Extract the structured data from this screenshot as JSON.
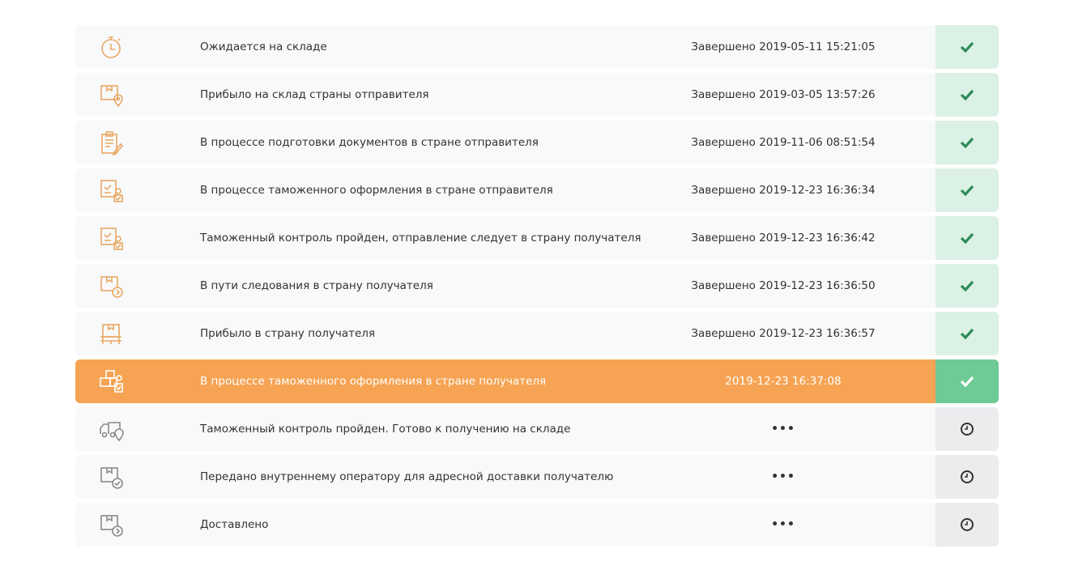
{
  "colors": {
    "icon_done": "#e9a865",
    "icon_pending": "#8a8a8a",
    "active_bg": "#f6a353",
    "done_status_bg": "#dcf1e5",
    "active_status_bg": "#6ecb95",
    "pending_status_bg": "#ebecee",
    "check": "#2e8b57"
  },
  "steps": [
    {
      "icon": "stopwatch-icon",
      "label": "Ожидается на складе",
      "date": "Завершено 2019-05-11 15:21:05",
      "state": "done"
    },
    {
      "icon": "box-location-icon",
      "label": "Прибыло на склад страны отправителя",
      "date": "Завершено 2019-03-05 13:57:26",
      "state": "done"
    },
    {
      "icon": "clipboard-pen-icon",
      "label": "В процессе подготовки документов в стране отправителя",
      "date": "Завершено 2019-11-06 08:51:54",
      "state": "done"
    },
    {
      "icon": "customs-officer-icon",
      "label": "В процессе таможенного оформления в стране отправителя",
      "date": "Завершено 2019-12-23 16:36:34",
      "state": "done"
    },
    {
      "icon": "clipboard-officer-icon",
      "label": "Таможенный контроль пройден, отправление следует в страну получателя",
      "date": "Завершено 2019-12-23 16:36:42",
      "state": "done"
    },
    {
      "icon": "box-arrow-icon",
      "label": "В пути следования в страну получателя",
      "date": "Завершено 2019-12-23 16:36:50",
      "state": "done"
    },
    {
      "icon": "box-pallet-icon",
      "label": "Прибыло в страну получателя",
      "date": "Завершено 2019-12-23 16:36:57",
      "state": "done"
    },
    {
      "icon": "boxes-customs-icon",
      "label": "В процессе таможенного оформления в стране получателя",
      "date": "2019-12-23 16:37:08",
      "state": "active"
    },
    {
      "icon": "truck-location-icon",
      "label": "Таможенный контроль пройден. Готово к получению на складе",
      "date": "•••",
      "state": "pending"
    },
    {
      "icon": "box-check-icon",
      "label": "Передано внутреннему оператору для адресной доставки получателю",
      "date": "•••",
      "state": "pending"
    },
    {
      "icon": "box-arrow-icon",
      "label": "Доставлено",
      "date": "•••",
      "state": "pending"
    }
  ]
}
